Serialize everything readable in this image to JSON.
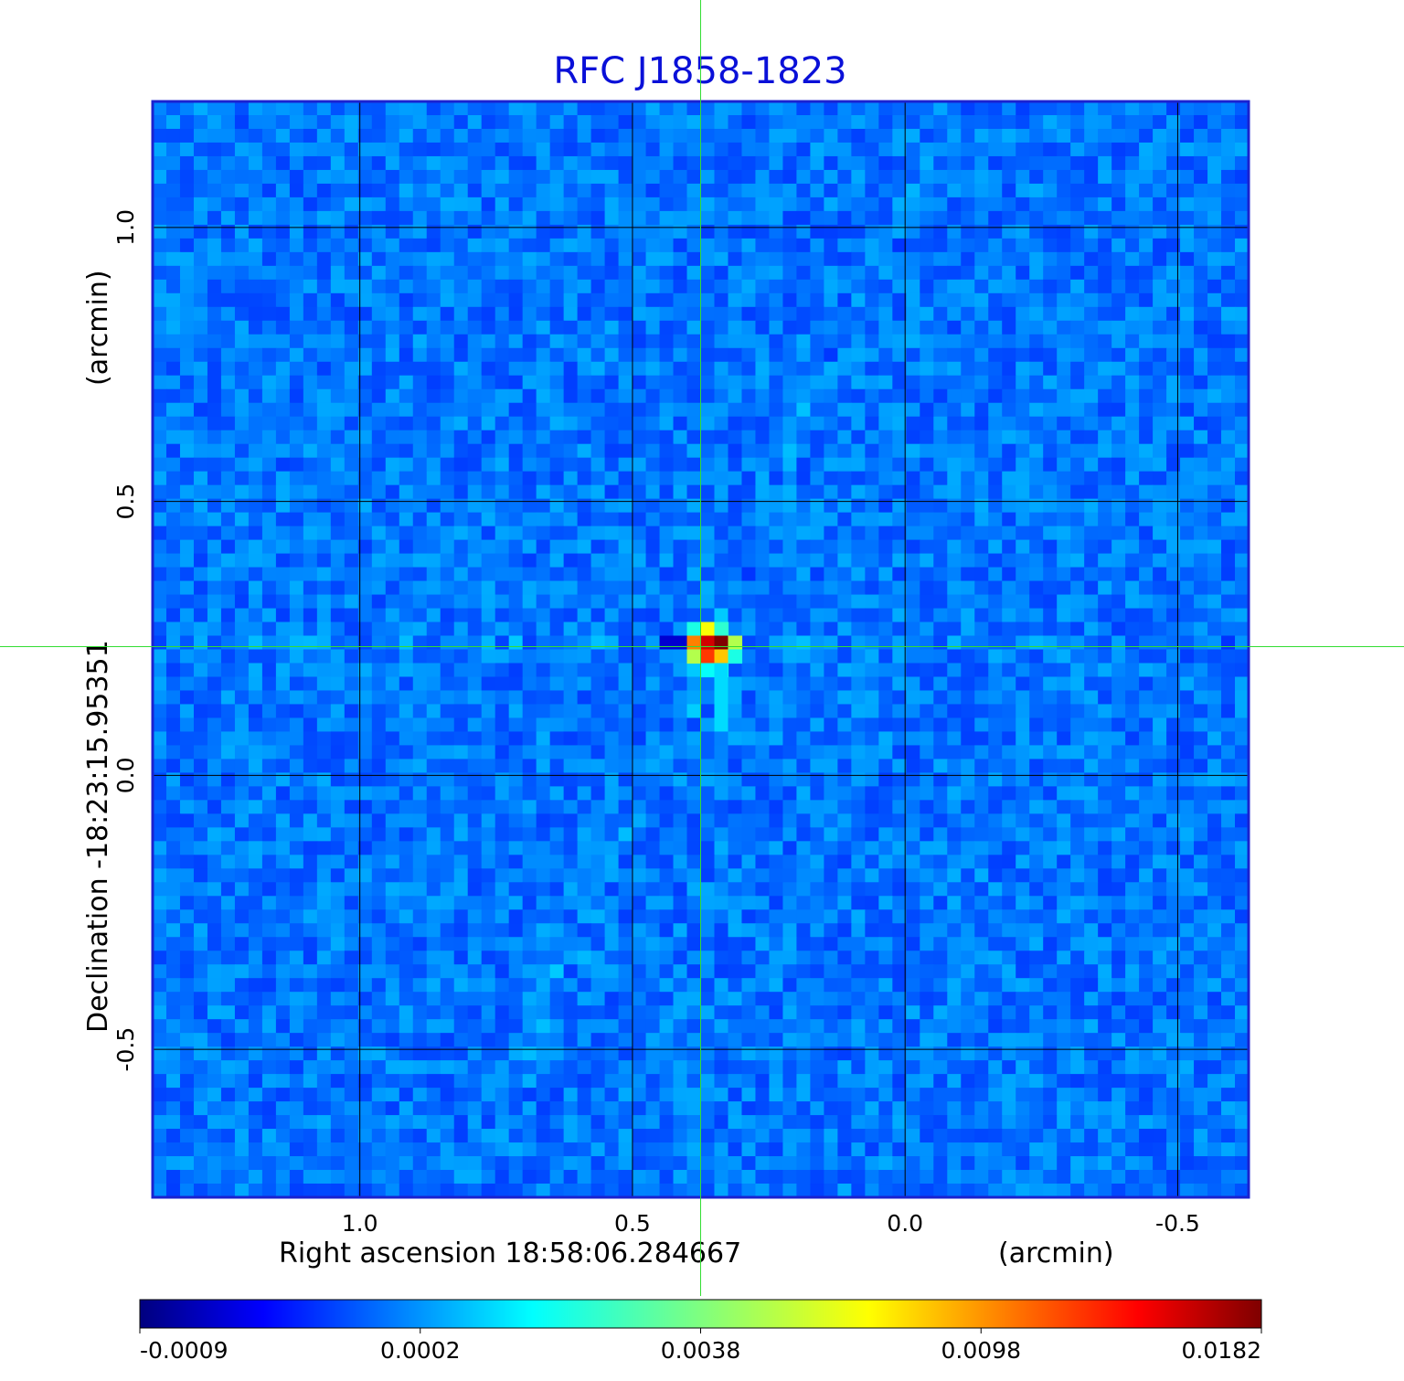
{
  "chart_data": {
    "type": "heatmap",
    "title": "RFC J1858-1823",
    "xlabel": "Right ascension  18:58:06.284667",
    "xunit": "(arcmin)",
    "ylabel": "Declination  -18:23:15.95351",
    "yunit": "(arcmin)",
    "xlim": [
      1.38,
      -0.63
    ],
    "ylim": [
      -0.77,
      1.23
    ],
    "x_ticks": [
      {
        "value": 1.0,
        "label": "1.0"
      },
      {
        "value": 0.5,
        "label": "0.5"
      },
      {
        "value": 0.0,
        "label": "0.0"
      },
      {
        "value": -0.5,
        "label": "-0.5"
      }
    ],
    "y_ticks": [
      {
        "value": 1.0,
        "label": "1.0"
      },
      {
        "value": 0.5,
        "label": "0.5"
      },
      {
        "value": 0.0,
        "label": "0.0"
      },
      {
        "value": -0.5,
        "label": "-0.5"
      }
    ],
    "grid": true,
    "crosshair": {
      "x": 0.375,
      "y": 0.235,
      "color": "#33dd33"
    },
    "peak": {
      "x": 0.37,
      "y": 0.235,
      "value": 0.0182
    },
    "colormap": "jet",
    "colorbar": {
      "position": "bottom",
      "ticks": [
        "-0.0009",
        "0.0002",
        "0.0038",
        "0.0098",
        "0.0182"
      ]
    },
    "colors": {
      "frame": "#1a22d0",
      "title": "#0a10d8",
      "grid": "#000000"
    }
  }
}
